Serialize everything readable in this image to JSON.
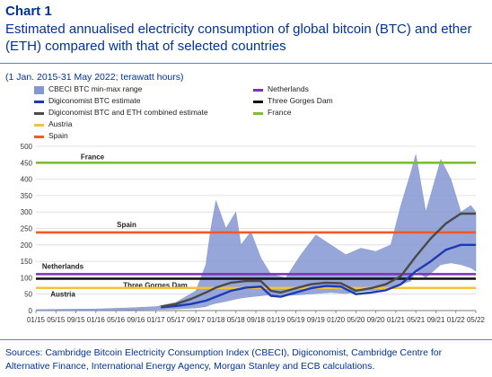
{
  "header": {
    "chart_number": "Chart 1",
    "title": "Estimated annualised electricity consumption of global bitcoin (BTC) and ether (ETH) compared with that of selected countries",
    "subtitle": "(1 Jan. 2015-31 May 2022; terawatt hours)"
  },
  "source": "Sources: Cambridge Bitcoin Electricity Consumption Index (CBECI), Digiconomist, Cambridge Centre for Alternative Finance, International Energy Agency, Morgan Stanley and ECB calculations.",
  "colors": {
    "band": "#8497d1",
    "digi_btc": "#1d3ab5",
    "digi_combined": "#4a4a4a",
    "austria": "#f2c23c",
    "spain": "#ee5a2e",
    "netherlands": "#7a33b4",
    "three_gorges": "#111111",
    "france": "#7cbd34",
    "title": "#003299",
    "axis": "#7a7a7a"
  },
  "chart_data": {
    "type": "area",
    "x_start": "2015-01",
    "x_end": "2022-05",
    "xlabels": [
      "01/15",
      "05/15",
      "09/15",
      "01/16",
      "05/16",
      "09/16",
      "01/17",
      "05/17",
      "09/17",
      "01/18",
      "05/18",
      "09/18",
      "01/19",
      "05/19",
      "09/19",
      "01/20",
      "05/20",
      "09/20",
      "01/21",
      "05/21",
      "09/21",
      "01/22",
      "05/22"
    ],
    "yticks": [
      0,
      50,
      100,
      150,
      200,
      250,
      300,
      350,
      400,
      450,
      500
    ],
    "ylim": [
      0,
      500
    ],
    "grid": true,
    "legend": [
      {
        "label": "CBECI BTC min-max range",
        "kind": "band",
        "color_key": "band"
      },
      {
        "label": "Digiconomist BTC estimate",
        "kind": "line",
        "color_key": "digi_btc"
      },
      {
        "label": "Digiconomist BTC and ETH combined estimate",
        "kind": "line",
        "color_key": "digi_combined"
      },
      {
        "label": "Austria",
        "kind": "line",
        "color_key": "austria"
      },
      {
        "label": "Spain",
        "kind": "line",
        "color_key": "spain"
      },
      {
        "label": "Netherlands",
        "kind": "line",
        "color_key": "netherlands"
      },
      {
        "label": "Three Gorges Dam",
        "kind": "line",
        "color_key": "three_gorges"
      },
      {
        "label": "France",
        "kind": "line",
        "color_key": "france"
      }
    ],
    "reference_lines": [
      {
        "name": "France",
        "value": 450,
        "color_key": "france",
        "label": "France"
      },
      {
        "name": "Spain",
        "value": 238,
        "color_key": "spain",
        "label": "Spain"
      },
      {
        "name": "Netherlands",
        "value": 111,
        "color_key": "netherlands",
        "label": "Netherlands"
      },
      {
        "name": "Three Gorges Dam",
        "value": 97,
        "color_key": "three_gorges",
        "label": "Three Gorges Dam"
      },
      {
        "name": "Austria",
        "value": 69,
        "color_key": "austria",
        "label": "Austria"
      }
    ],
    "cbeci_range": {
      "x": [
        "2015-01",
        "2015-07",
        "2016-01",
        "2016-07",
        "2017-01",
        "2017-05",
        "2017-09",
        "2017-11",
        "2017-12",
        "2018-01",
        "2018-03",
        "2018-05",
        "2018-06",
        "2018-08",
        "2018-10",
        "2018-12",
        "2019-03",
        "2019-06",
        "2019-09",
        "2019-12",
        "2020-03",
        "2020-06",
        "2020-09",
        "2020-12",
        "2021-02",
        "2021-04",
        "2021-05",
        "2021-07",
        "2021-10",
        "2021-12",
        "2022-02",
        "2022-04",
        "2022-05"
      ],
      "min": [
        1,
        1,
        1,
        2,
        3,
        5,
        8,
        12,
        18,
        22,
        28,
        35,
        38,
        42,
        45,
        48,
        46,
        48,
        52,
        55,
        52,
        58,
        62,
        70,
        80,
        90,
        120,
        100,
        140,
        145,
        140,
        130,
        120
      ],
      "max": [
        3,
        4,
        5,
        8,
        12,
        25,
        60,
        140,
        250,
        335,
        250,
        300,
        200,
        240,
        160,
        110,
        100,
        170,
        230,
        200,
        170,
        190,
        180,
        200,
        320,
        420,
        475,
        300,
        460,
        400,
        300,
        320,
        300
      ]
    },
    "series": [
      {
        "name": "Digiconomist BTC estimate",
        "color_key": "digi_btc",
        "x": [
          "2017-02",
          "2017-05",
          "2017-08",
          "2017-11",
          "2018-01",
          "2018-04",
          "2018-07",
          "2018-10",
          "2018-12",
          "2019-02",
          "2019-05",
          "2019-08",
          "2019-11",
          "2020-02",
          "2020-05",
          "2020-08",
          "2020-11",
          "2021-02",
          "2021-05",
          "2021-08",
          "2021-11",
          "2022-02",
          "2022-05"
        ],
        "values": [
          10,
          14,
          20,
          30,
          42,
          60,
          70,
          73,
          45,
          42,
          55,
          68,
          75,
          73,
          50,
          55,
          62,
          80,
          120,
          150,
          185,
          200,
          200
        ]
      },
      {
        "name": "Digiconomist BTC and ETH combined estimate",
        "color_key": "digi_combined",
        "x": [
          "2017-02",
          "2017-05",
          "2017-08",
          "2017-11",
          "2018-01",
          "2018-04",
          "2018-07",
          "2018-10",
          "2018-12",
          "2019-02",
          "2019-05",
          "2019-08",
          "2019-11",
          "2020-02",
          "2020-05",
          "2020-08",
          "2020-11",
          "2021-02",
          "2021-05",
          "2021-08",
          "2021-11",
          "2022-02",
          "2022-05"
        ],
        "values": [
          12,
          20,
          35,
          55,
          70,
          85,
          90,
          90,
          60,
          55,
          68,
          80,
          85,
          83,
          60,
          68,
          80,
          105,
          165,
          220,
          265,
          295,
          295
        ]
      }
    ]
  }
}
